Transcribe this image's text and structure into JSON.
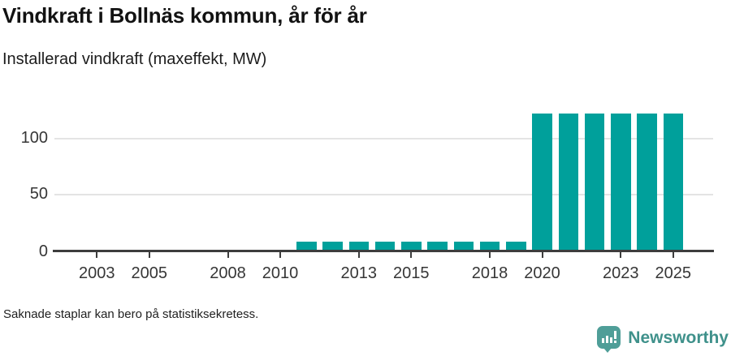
{
  "header": {
    "title": "Vindkraft i Bollnäs kommun, år för år",
    "subtitle": "Installerad vindkraft (maxeffekt, MW)"
  },
  "chart_data": {
    "type": "bar",
    "title": "Vindkraft i Bollnäs kommun, år för år",
    "subtitle": "Installerad vindkraft (maxeffekt, MW)",
    "ylabel": "",
    "xlabel": "",
    "unit": "MW",
    "x": [
      2002,
      2003,
      2004,
      2005,
      2006,
      2007,
      2008,
      2009,
      2010,
      2011,
      2012,
      2013,
      2014,
      2015,
      2016,
      2017,
      2018,
      2019,
      2020,
      2021,
      2022,
      2023,
      2024,
      2025
    ],
    "values": [
      null,
      null,
      null,
      null,
      null,
      null,
      null,
      null,
      null,
      7,
      7,
      7,
      7,
      7,
      7,
      7,
      7,
      7,
      122,
      122,
      122,
      122,
      122,
      122
    ],
    "ylim": [
      0,
      130
    ],
    "y_ticks": [
      0,
      50,
      100
    ],
    "x_tick_years": [
      2003,
      2005,
      2008,
      2010,
      2013,
      2015,
      2018,
      2020,
      2023,
      2025
    ],
    "grid": "horizontal-only",
    "legend": "none",
    "bar_color": "#00a09b",
    "missing_note": "Saknade staplar kan bero på statistiksekretess."
  },
  "footer": {
    "note": "Saknade staplar kan bero på statistiksekretess."
  },
  "branding": {
    "name": "Newsworthy",
    "logo_icon": "newsworthy-speech-bubble-barchart-icon",
    "brand_color": "#3f918b",
    "logo_color": "#4f9e98"
  }
}
